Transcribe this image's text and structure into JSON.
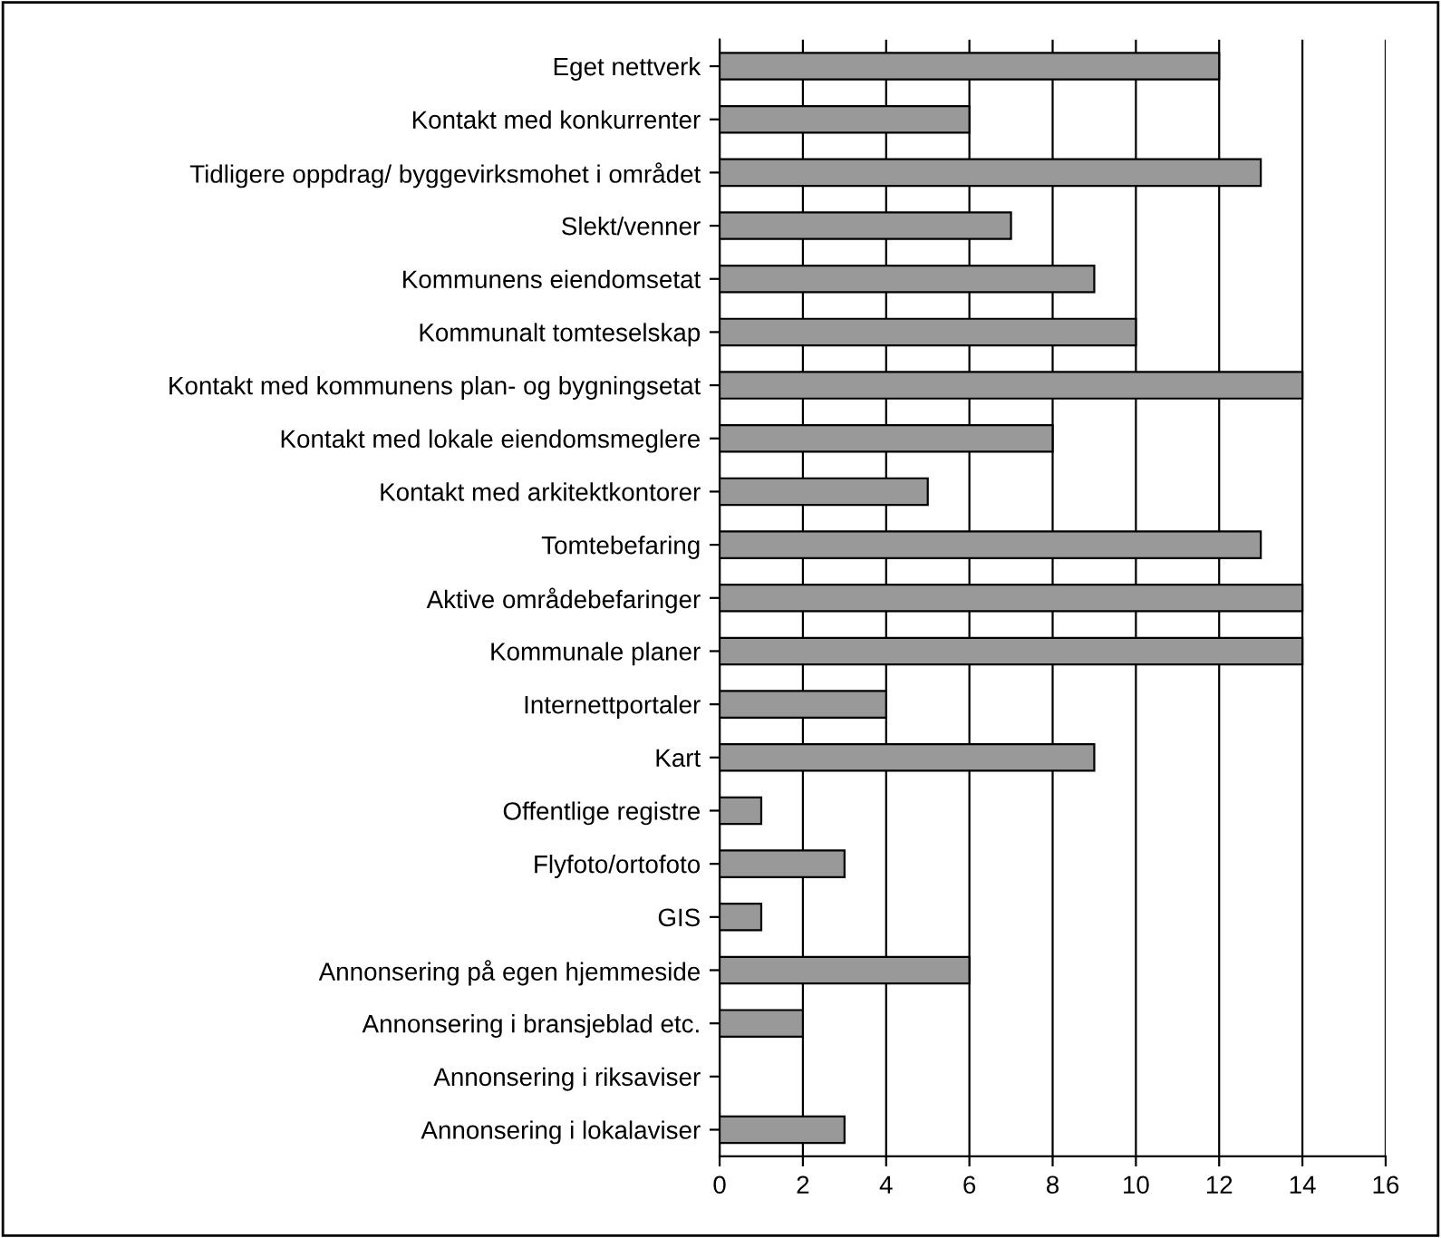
{
  "chart_data": {
    "type": "bar",
    "orientation": "horizontal",
    "categories": [
      "Eget nettverk",
      "Kontakt med konkurrenter",
      "Tidligere oppdrag/ byggevirksmohet i området",
      "Slekt/venner",
      "Kommunens eiendomsetat",
      "Kommunalt tomteselskap",
      "Kontakt med kommunens plan- og bygningsetat",
      "Kontakt med lokale eiendomsmeglere",
      "Kontakt med arkitektkontorer",
      "Tomtebefaring",
      "Aktive områdebefaringer",
      "Kommunale planer",
      "Internettportaler",
      "Kart",
      "Offentlige registre",
      "Flyfoto/ortofoto",
      "GIS",
      "Annonsering på egen hjemmeside",
      "Annonsering i bransjeblad etc.",
      "Annonsering i riksaviser",
      "Annonsering i lokalaviser"
    ],
    "values": [
      12,
      6,
      13,
      7,
      9,
      10,
      14,
      8,
      5,
      13,
      14,
      14,
      4,
      9,
      1,
      3,
      1,
      6,
      2,
      0,
      3
    ],
    "color": "#999999",
    "xlim": [
      0,
      16
    ],
    "xticks": [
      0,
      2,
      4,
      6,
      8,
      10,
      12,
      14,
      16
    ],
    "grid": "x",
    "legend": false
  }
}
